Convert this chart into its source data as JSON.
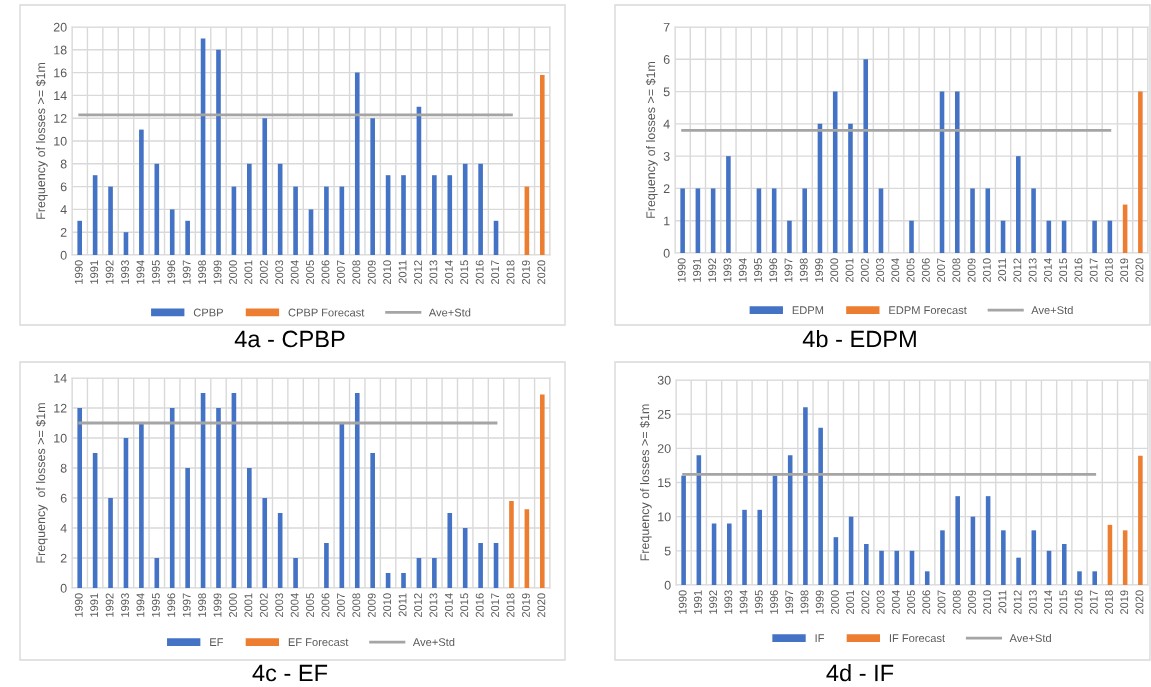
{
  "chart_data": [
    {
      "type": "bar",
      "title": "4a - CPBP",
      "ylabel": "Frequency of losses >= $1m",
      "categories": [
        "1990",
        "1991",
        "1992",
        "1993",
        "1994",
        "1995",
        "1996",
        "1997",
        "1998",
        "1999",
        "2000",
        "2001",
        "2002",
        "2003",
        "2004",
        "2005",
        "2006",
        "2007",
        "2008",
        "2009",
        "2010",
        "2011",
        "2012",
        "2013",
        "2014",
        "2015",
        "2016",
        "2017",
        "2018",
        "2019",
        "2020"
      ],
      "ylim": [
        0,
        20
      ],
      "yticks": [
        0,
        2,
        4,
        6,
        8,
        10,
        12,
        14,
        16,
        18,
        20
      ],
      "grid": true,
      "legend": "bottom",
      "series": [
        {
          "name": "CPBP",
          "color": "#4472c4",
          "values": [
            3,
            7,
            6,
            2,
            11,
            8,
            4,
            3,
            19,
            18,
            6,
            8,
            12,
            8,
            6,
            4,
            6,
            6,
            16,
            12,
            7,
            7,
            13,
            7,
            7,
            8,
            8,
            3,
            null,
            null,
            null
          ]
        },
        {
          "name": "CPBP Forecast",
          "color": "#ed7d31",
          "values": [
            null,
            null,
            null,
            null,
            null,
            null,
            null,
            null,
            null,
            null,
            null,
            null,
            null,
            null,
            null,
            null,
            null,
            null,
            null,
            null,
            null,
            null,
            null,
            null,
            null,
            null,
            null,
            null,
            null,
            6,
            15.8
          ]
        },
        {
          "name": "Ave+Std",
          "type": "line",
          "color": "#a5a5a5",
          "values": [
            12.3,
            12.3,
            12.3,
            12.3,
            12.3,
            12.3,
            12.3,
            12.3,
            12.3,
            12.3,
            12.3,
            12.3,
            12.3,
            12.3,
            12.3,
            12.3,
            12.3,
            12.3,
            12.3,
            12.3,
            12.3,
            12.3,
            12.3,
            12.3,
            12.3,
            12.3,
            12.3,
            12.3,
            12.3,
            null,
            null
          ]
        }
      ]
    },
    {
      "type": "bar",
      "title": "4b - EDPM",
      "ylabel": "Frequency of losses >= $1m",
      "categories": [
        "1990",
        "1991",
        "1992",
        "1993",
        "1994",
        "1995",
        "1996",
        "1997",
        "1998",
        "1999",
        "2000",
        "2001",
        "2002",
        "2003",
        "2004",
        "2005",
        "2006",
        "2007",
        "2008",
        "2009",
        "2010",
        "2011",
        "2012",
        "2013",
        "2014",
        "2015",
        "2016",
        "2017",
        "2018",
        "2019",
        "2020"
      ],
      "ylim": [
        0,
        7
      ],
      "yticks": [
        0,
        1,
        2,
        3,
        4,
        5,
        6,
        7
      ],
      "grid": true,
      "legend": "bottom",
      "series": [
        {
          "name": "EDPM",
          "color": "#4472c4",
          "values": [
            2,
            2,
            2,
            3,
            0,
            2,
            2,
            1,
            2,
            4,
            5,
            4,
            6,
            2,
            0,
            1,
            0,
            5,
            5,
            2,
            2,
            1,
            3,
            2,
            1,
            1,
            0,
            1,
            1,
            null,
            null
          ]
        },
        {
          "name": "EDPM Forecast",
          "color": "#ed7d31",
          "values": [
            null,
            null,
            null,
            null,
            null,
            null,
            null,
            null,
            null,
            null,
            null,
            null,
            null,
            null,
            null,
            null,
            null,
            null,
            null,
            null,
            null,
            null,
            null,
            null,
            null,
            null,
            null,
            null,
            null,
            1.5,
            5
          ]
        },
        {
          "name": "Ave+Std",
          "type": "line",
          "color": "#a5a5a5",
          "values": [
            3.8,
            3.8,
            3.8,
            3.8,
            3.8,
            3.8,
            3.8,
            3.8,
            3.8,
            3.8,
            3.8,
            3.8,
            3.8,
            3.8,
            3.8,
            3.8,
            3.8,
            3.8,
            3.8,
            3.8,
            3.8,
            3.8,
            3.8,
            3.8,
            3.8,
            3.8,
            3.8,
            3.8,
            3.8,
            null,
            null
          ]
        }
      ]
    },
    {
      "type": "bar",
      "title": "4c - EF",
      "ylabel": "Frequency  of losses >= $1m",
      "categories": [
        "1990",
        "1991",
        "1992",
        "1993",
        "1994",
        "1995",
        "1996",
        "1997",
        "1998",
        "1999",
        "2000",
        "2001",
        "2002",
        "2003",
        "2004",
        "2005",
        "2006",
        "2007",
        "2008",
        "2009",
        "2010",
        "2011",
        "2012",
        "2013",
        "2014",
        "2015",
        "2016",
        "2017",
        "2018",
        "2019",
        "2020"
      ],
      "ylim": [
        0,
        14
      ],
      "yticks": [
        0,
        2,
        4,
        6,
        8,
        10,
        12,
        14
      ],
      "grid": true,
      "legend": "bottom",
      "series": [
        {
          "name": "EF",
          "color": "#4472c4",
          "values": [
            12,
            9,
            6,
            10,
            11,
            2,
            12,
            8,
            13,
            12,
            13,
            8,
            6,
            5,
            2,
            0,
            3,
            11,
            13,
            9,
            1,
            1,
            2,
            2,
            5,
            4,
            3,
            3,
            null,
            null,
            null
          ]
        },
        {
          "name": "EF Forecast",
          "color": "#ed7d31",
          "values": [
            null,
            null,
            null,
            null,
            null,
            null,
            null,
            null,
            null,
            null,
            null,
            null,
            null,
            null,
            null,
            null,
            null,
            null,
            null,
            null,
            null,
            null,
            null,
            null,
            null,
            null,
            null,
            null,
            5.8,
            5.25,
            12.9
          ]
        },
        {
          "name": "Ave+Std",
          "type": "line",
          "color": "#a5a5a5",
          "values": [
            11,
            11,
            11,
            11,
            11,
            11,
            11,
            11,
            11,
            11,
            11,
            11,
            11,
            11,
            11,
            11,
            11,
            11,
            11,
            11,
            11,
            11,
            11,
            11,
            11,
            11,
            11,
            11,
            null,
            null,
            null
          ]
        }
      ]
    },
    {
      "type": "bar",
      "title": "4d - IF",
      "ylabel": "Frequency of losses >= $1m",
      "categories": [
        "1990",
        "1991",
        "1992",
        "1993",
        "1994",
        "1995",
        "1996",
        "1997",
        "1998",
        "1999",
        "2000",
        "2001",
        "2002",
        "2003",
        "2004",
        "2005",
        "2006",
        "2007",
        "2008",
        "2009",
        "2010",
        "2011",
        "2012",
        "2013",
        "2014",
        "2015",
        "2016",
        "2017",
        "2018",
        "2019",
        "2020"
      ],
      "ylim": [
        0,
        30
      ],
      "yticks": [
        0,
        5,
        10,
        15,
        20,
        25,
        30
      ],
      "grid": true,
      "legend": "bottom",
      "series": [
        {
          "name": "IF",
          "color": "#4472c4",
          "values": [
            16,
            19,
            9,
            9,
            11,
            11,
            16,
            19,
            26,
            23,
            7,
            10,
            6,
            5,
            5,
            5,
            2,
            8,
            13,
            10,
            13,
            8,
            4,
            8,
            5,
            6,
            2,
            2,
            null,
            null,
            null
          ]
        },
        {
          "name": "IF Forecast",
          "color": "#ed7d31",
          "values": [
            null,
            null,
            null,
            null,
            null,
            null,
            null,
            null,
            null,
            null,
            null,
            null,
            null,
            null,
            null,
            null,
            null,
            null,
            null,
            null,
            null,
            null,
            null,
            null,
            null,
            null,
            null,
            null,
            8.8,
            8,
            18.9
          ]
        },
        {
          "name": "Ave+Std",
          "type": "line",
          "color": "#a5a5a5",
          "values": [
            16.2,
            16.2,
            16.2,
            16.2,
            16.2,
            16.2,
            16.2,
            16.2,
            16.2,
            16.2,
            16.2,
            16.2,
            16.2,
            16.2,
            16.2,
            16.2,
            16.2,
            16.2,
            16.2,
            16.2,
            16.2,
            16.2,
            16.2,
            16.2,
            16.2,
            16.2,
            16.2,
            16.2,
            null,
            null,
            null
          ]
        }
      ]
    }
  ]
}
